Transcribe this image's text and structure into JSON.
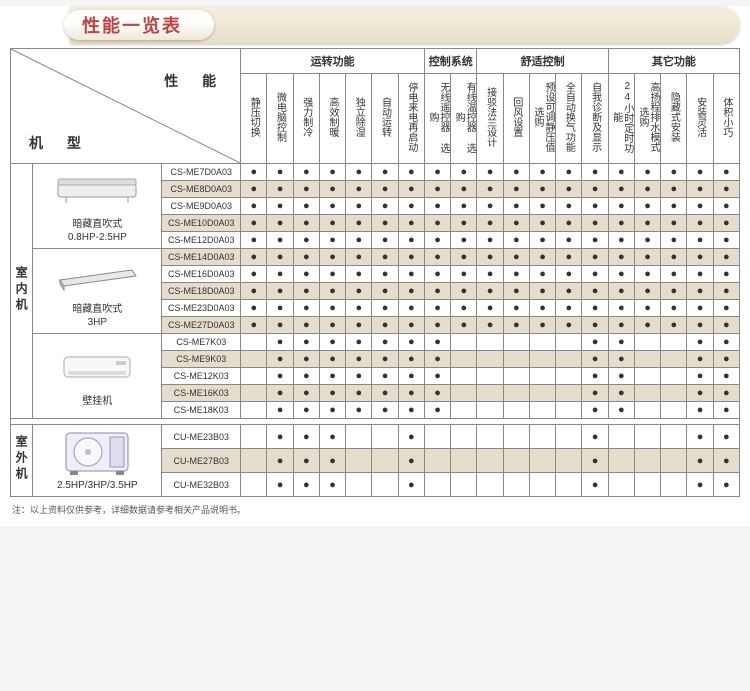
{
  "title": "性能一览表",
  "cornerLabels": {
    "performance": "性 能",
    "model": "机 型"
  },
  "groups": [
    {
      "label": "运转功能",
      "span": 7
    },
    {
      "label": "控制系统",
      "span": 2
    },
    {
      "label": "舒适控制",
      "span": 5
    },
    {
      "label": "其它功能",
      "span": 5
    }
  ],
  "features": [
    "静压切换",
    "微电脑控制",
    "强力制冷",
    "高效制暖",
    "独立除湿",
    "自动运转",
    "停电来电再启动",
    "无线遥控器 选购",
    "有线温控器 选购",
    "接驳法兰设计",
    "回风设置",
    "预设可调静压值 选购",
    "全自动换气功能",
    "自我诊断及显示",
    "24小时定时功能",
    "高扬程排水模式 选购",
    "隐藏式安装",
    "安装灵活",
    "体积小巧"
  ],
  "sections": [
    {
      "side": "室内机",
      "blocks": [
        {
          "product": {
            "name": "暗藏直吹式",
            "sub": "0.8HP-2.5HP",
            "img": "ceiling"
          },
          "rows": [
            {
              "model": "CS-ME7D0A03",
              "alt": false,
              "dots": [
                1,
                1,
                1,
                1,
                1,
                1,
                1,
                1,
                1,
                1,
                1,
                1,
                1,
                1,
                1,
                1,
                1,
                1,
                1
              ]
            },
            {
              "model": "CS-ME8D0A03",
              "alt": true,
              "dots": [
                1,
                1,
                1,
                1,
                1,
                1,
                1,
                1,
                1,
                1,
                1,
                1,
                1,
                1,
                1,
                1,
                1,
                1,
                1
              ]
            },
            {
              "model": "CS-ME9D0A03",
              "alt": false,
              "dots": [
                1,
                1,
                1,
                1,
                1,
                1,
                1,
                1,
                1,
                1,
                1,
                1,
                1,
                1,
                1,
                1,
                1,
                1,
                1
              ]
            },
            {
              "model": "CS-ME10D0A03",
              "alt": true,
              "dots": [
                1,
                1,
                1,
                1,
                1,
                1,
                1,
                1,
                1,
                1,
                1,
                1,
                1,
                1,
                1,
                1,
                1,
                1,
                1
              ]
            },
            {
              "model": "CS-ME12D0A03",
              "alt": false,
              "dots": [
                1,
                1,
                1,
                1,
                1,
                1,
                1,
                1,
                1,
                1,
                1,
                1,
                1,
                1,
                1,
                1,
                1,
                1,
                1
              ]
            }
          ]
        },
        {
          "product": {
            "name": "暗藏直吹式",
            "sub": "3HP",
            "img": "duct"
          },
          "rows": [
            {
              "model": "CS-ME14D0A03",
              "alt": true,
              "dots": [
                1,
                1,
                1,
                1,
                1,
                1,
                1,
                1,
                1,
                1,
                1,
                1,
                1,
                1,
                1,
                1,
                1,
                1,
                1
              ]
            },
            {
              "model": "CS-ME16D0A03",
              "alt": false,
              "dots": [
                1,
                1,
                1,
                1,
                1,
                1,
                1,
                1,
                1,
                1,
                1,
                1,
                1,
                1,
                1,
                1,
                1,
                1,
                1
              ]
            },
            {
              "model": "CS-ME18D0A03",
              "alt": true,
              "dots": [
                1,
                1,
                1,
                1,
                1,
                1,
                1,
                1,
                1,
                1,
                1,
                1,
                1,
                1,
                1,
                1,
                1,
                1,
                1
              ]
            },
            {
              "model": "CS-ME23D0A03",
              "alt": false,
              "dots": [
                1,
                1,
                1,
                1,
                1,
                1,
                1,
                1,
                1,
                1,
                1,
                1,
                1,
                1,
                1,
                1,
                1,
                1,
                1
              ]
            },
            {
              "model": "CS-ME27D0A03",
              "alt": true,
              "dots": [
                1,
                1,
                1,
                1,
                1,
                1,
                1,
                1,
                1,
                1,
                1,
                1,
                1,
                1,
                1,
                1,
                1,
                1,
                1
              ]
            }
          ]
        },
        {
          "product": {
            "name": "壁挂机",
            "sub": "",
            "img": "wall"
          },
          "rows": [
            {
              "model": "CS-ME7K03",
              "alt": false,
              "dots": [
                0,
                1,
                1,
                1,
                1,
                1,
                1,
                1,
                0,
                0,
                0,
                0,
                0,
                1,
                1,
                0,
                0,
                1,
                1
              ]
            },
            {
              "model": "CS-ME9K03",
              "alt": true,
              "dots": [
                0,
                1,
                1,
                1,
                1,
                1,
                1,
                1,
                0,
                0,
                0,
                0,
                0,
                1,
                1,
                0,
                0,
                1,
                1
              ]
            },
            {
              "model": "CS-ME12K03",
              "alt": false,
              "dots": [
                0,
                1,
                1,
                1,
                1,
                1,
                1,
                1,
                0,
                0,
                0,
                0,
                0,
                1,
                1,
                0,
                0,
                1,
                1
              ]
            },
            {
              "model": "CS-ME16K03",
              "alt": true,
              "dots": [
                0,
                1,
                1,
                1,
                1,
                1,
                1,
                1,
                0,
                0,
                0,
                0,
                0,
                1,
                1,
                0,
                0,
                1,
                1
              ]
            },
            {
              "model": "CS-ME18K03",
              "alt": false,
              "dots": [
                0,
                1,
                1,
                1,
                1,
                1,
                1,
                1,
                0,
                0,
                0,
                0,
                0,
                1,
                1,
                0,
                0,
                1,
                1
              ]
            }
          ]
        }
      ]
    },
    {
      "side": "室外机",
      "blocks": [
        {
          "product": {
            "name": "",
            "sub": "2.5HP/3HP/3.5HP",
            "img": "outdoor"
          },
          "rows": [
            {
              "model": "CU-ME23B03",
              "alt": false,
              "dots": [
                0,
                1,
                1,
                1,
                0,
                0,
                1,
                0,
                0,
                0,
                0,
                0,
                0,
                1,
                0,
                0,
                0,
                1,
                1
              ]
            },
            {
              "model": "CU-ME27B03",
              "alt": true,
              "dots": [
                0,
                1,
                1,
                1,
                0,
                0,
                1,
                0,
                0,
                0,
                0,
                0,
                0,
                1,
                0,
                0,
                0,
                1,
                1
              ]
            },
            {
              "model": "CU-ME32B03",
              "alt": false,
              "dots": [
                0,
                1,
                1,
                1,
                0,
                0,
                1,
                0,
                0,
                0,
                0,
                0,
                0,
                1,
                0,
                0,
                0,
                1,
                1
              ]
            }
          ]
        }
      ]
    }
  ],
  "footnote": "注：以上资料仅供参考，详细数据请参考相关产品说明书。",
  "colors": {
    "altRow": "#e6dccb",
    "border": "#888888",
    "titleText": "#bb4444"
  }
}
